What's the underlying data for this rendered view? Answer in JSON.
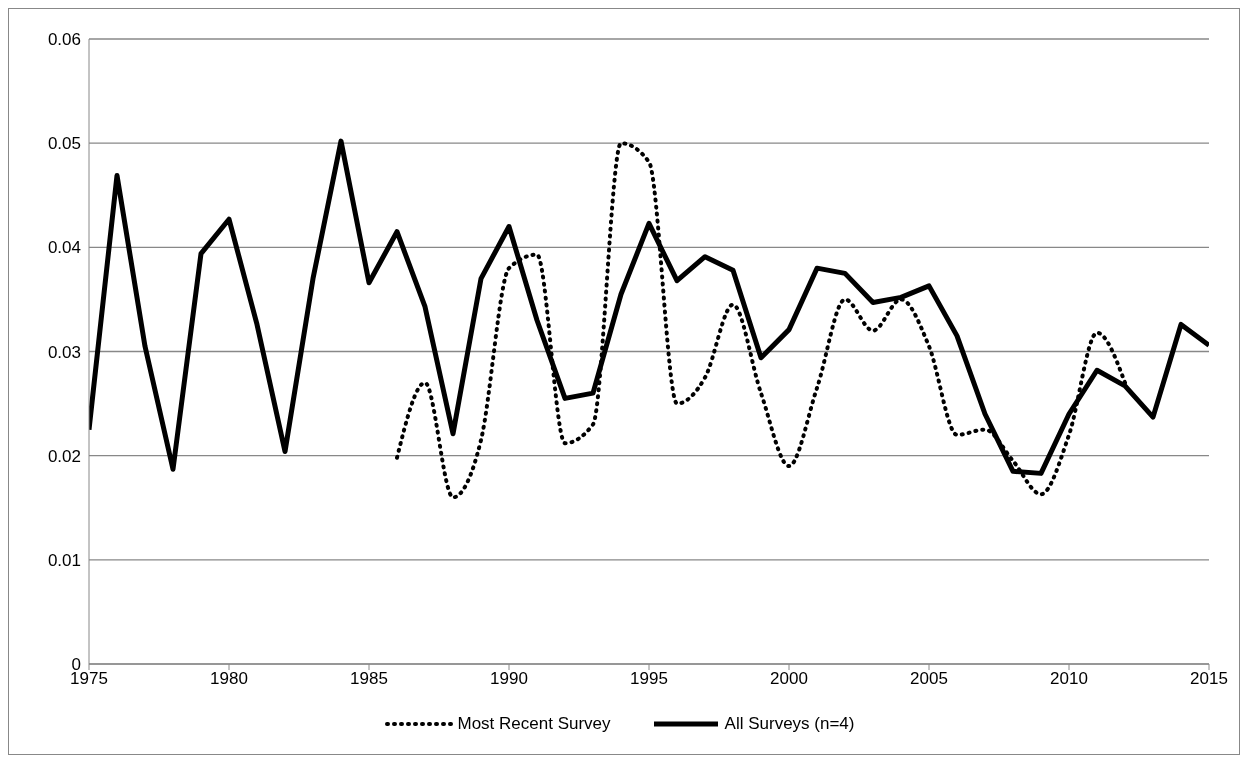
{
  "chart_data": {
    "type": "line",
    "xlim": [
      1975,
      2015
    ],
    "xticks": [
      1975,
      1980,
      1985,
      1990,
      1995,
      2000,
      2005,
      2010,
      2015
    ],
    "ylim": [
      0,
      0.06
    ],
    "yticks": [
      {
        "value": 0,
        "label": "0"
      },
      {
        "value": 0.01,
        "label": "0.01"
      },
      {
        "value": 0.02,
        "label": "0.02"
      },
      {
        "value": 0.03,
        "label": "0.03"
      },
      {
        "value": 0.04,
        "label": "0.04"
      },
      {
        "value": 0.05,
        "label": "0.05"
      },
      {
        "value": 0.06,
        "label": "0.06"
      }
    ],
    "grid": "y",
    "legend": "bottom",
    "marker": "none",
    "series": [
      {
        "name": "Most Recent Survey",
        "color": "#000000",
        "line_style": "dotted",
        "x": [
          1986,
          1987,
          1988,
          1989,
          1990,
          1991,
          1992,
          1993,
          1994,
          1995,
          1996,
          1997,
          1998,
          1999,
          2000,
          2001,
          2002,
          2003,
          2004,
          2005,
          2006,
          2007,
          2008,
          2009,
          2010,
          2011,
          2012
        ],
        "values": [
          0.0198,
          0.027,
          0.016,
          0.0215,
          0.038,
          0.0393,
          0.0212,
          0.023,
          0.05,
          0.0482,
          0.025,
          0.0275,
          0.0345,
          0.026,
          0.019,
          0.0265,
          0.035,
          0.032,
          0.035,
          0.0305,
          0.022,
          0.0225,
          0.0195,
          0.0163,
          0.022,
          0.0318,
          0.027
        ]
      },
      {
        "name": "All Surveys (n=4)",
        "color": "#000000",
        "line_style": "solid",
        "x": [
          1975,
          1976,
          1977,
          1978,
          1979,
          1980,
          1981,
          1982,
          1983,
          1984,
          1985,
          1986,
          1987,
          1988,
          1989,
          1990,
          1991,
          1992,
          1993,
          1994,
          1995,
          1996,
          1997,
          1998,
          1999,
          2000,
          2001,
          2002,
          2003,
          2004,
          2005,
          2006,
          2007,
          2008,
          2009,
          2010,
          2011,
          2012,
          2013,
          2014,
          2015
        ],
        "values": [
          0.0225,
          0.0469,
          0.0305,
          0.0187,
          0.0394,
          0.0427,
          0.0326,
          0.0204,
          0.037,
          0.0502,
          0.0366,
          0.0415,
          0.0343,
          0.0221,
          0.037,
          0.042,
          0.033,
          0.0255,
          0.026,
          0.0355,
          0.0423,
          0.0368,
          0.0391,
          0.0378,
          0.0294,
          0.0321,
          0.038,
          0.0375,
          0.0347,
          0.0352,
          0.0363,
          0.0315,
          0.024,
          0.0185,
          0.0183,
          0.024,
          0.0282,
          0.0267,
          0.0237,
          0.0326,
          0.0306
        ]
      }
    ]
  }
}
